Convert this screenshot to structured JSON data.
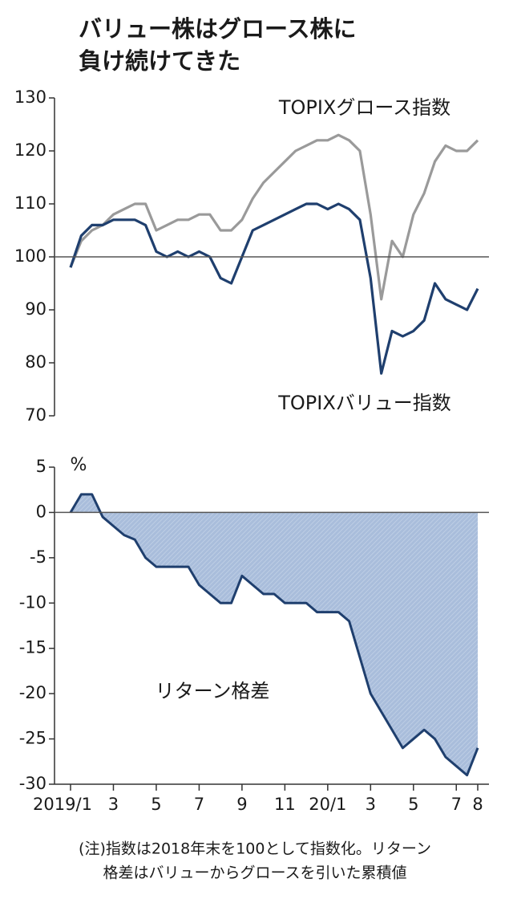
{
  "header": {
    "title_lines": [
      "バリュー株はグロース株に",
      "負け続けてきた"
    ]
  },
  "chart_data": [
    {
      "type": "line",
      "series": [
        {
          "name": "TOPIXグロース指数",
          "color": "#9a9a9a",
          "values": [
            98,
            103,
            105,
            106,
            108,
            109,
            110,
            110,
            105,
            106,
            107,
            107,
            108,
            108,
            105,
            105,
            107,
            111,
            114,
            116,
            118,
            120,
            121,
            122,
            122,
            123,
            122,
            120,
            108,
            92,
            103,
            100,
            108,
            112,
            118,
            121,
            120,
            120,
            122
          ]
        },
        {
          "name": "TOPIXバリュー指数",
          "color": "#1f3f6e",
          "values": [
            98,
            104,
            106,
            106,
            107,
            107,
            107,
            106,
            101,
            100,
            101,
            100,
            101,
            100,
            96,
            95,
            100,
            105,
            106,
            107,
            108,
            109,
            110,
            110,
            109,
            110,
            109,
            107,
            96,
            78,
            86,
            85,
            86,
            88,
            95,
            92,
            91,
            90,
            94
          ]
        }
      ],
      "ylim": [
        70,
        130
      ],
      "yticks": [
        70,
        80,
        90,
        100,
        110,
        120,
        130
      ],
      "reference_line": 100
    },
    {
      "type": "area",
      "ylabel": "%",
      "categories": [
        "2019/1",
        null,
        null,
        null,
        "3",
        null,
        null,
        null,
        "5",
        null,
        null,
        null,
        "7",
        null,
        null,
        null,
        "9",
        null,
        null,
        null,
        "11",
        null,
        null,
        null,
        "20/1",
        null,
        null,
        null,
        "3",
        null,
        null,
        null,
        "5",
        null,
        null,
        null,
        "7",
        null,
        "8"
      ],
      "series": [
        {
          "name": "リターン格差",
          "color": "#1f3f6e",
          "fill": "#a9bddb",
          "values": [
            0,
            2,
            2,
            -0.5,
            -1.5,
            -2.5,
            -3,
            -5,
            -6,
            -6,
            -6,
            -6,
            -8,
            -9,
            -10,
            -10,
            -7,
            -8,
            -9,
            -9,
            -10,
            -10,
            -10,
            -11,
            -11,
            -11,
            -12,
            -16,
            -20,
            -22,
            -24,
            -26,
            -25,
            -24,
            -25,
            -27,
            -28,
            -29,
            -26
          ]
        }
      ],
      "ylim": [
        -30,
        5
      ],
      "yticks": [
        -30,
        -25,
        -20,
        -15,
        -10,
        -5,
        0,
        5
      ],
      "reference_line": 0
    }
  ],
  "footnote": [
    "(注)指数は2018年末を100として指数化。リターン",
    "格差はバリューからグロースを引いた累積値"
  ]
}
